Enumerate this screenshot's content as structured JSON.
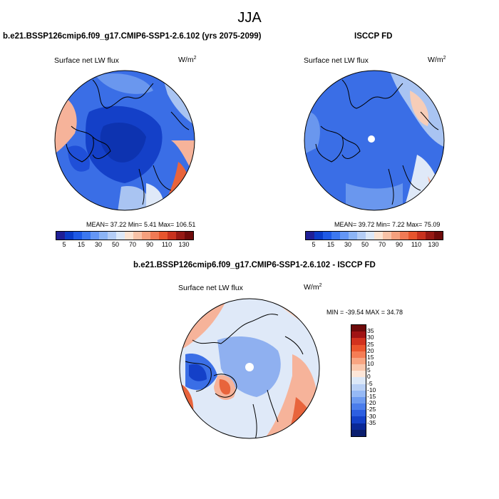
{
  "season": "JJA",
  "panels": [
    {
      "title": "b.e21.BSSP126cmip6.f09_g17.CMIP6-SSP1-2.6.102 (yrs 2075-2099)",
      "variable": "Surface net LW flux",
      "units_base": "W/m",
      "units_exp": "2",
      "stats": "MEAN=  37.22  Min=   5.41  Max= 106.51"
    },
    {
      "title": "ISCCP FD",
      "variable": "Surface net LW flux",
      "units_base": "W/m",
      "units_exp": "2",
      "stats": "MEAN=  39.72  Min=   7.22  Max=  75.09"
    },
    {
      "title": "b.e21.BSSP126cmip6.f09_g17.CMIP6-SSP1-2.6.102 - ISCCP FD",
      "variable": "Surface net LW flux",
      "units_base": "W/m",
      "units_exp": "2",
      "stats": "MIN = -39.54 MAX =  34.78"
    }
  ],
  "colorbars": {
    "absolute": {
      "colors": [
        "#1f1f96",
        "#0a3cc8",
        "#1e5ae6",
        "#3c78f0",
        "#6496f5",
        "#8cb4f5",
        "#b4cdf5",
        "#dce8f8",
        "#fbe3d2",
        "#f8c2a6",
        "#f5a07d",
        "#f07a55",
        "#e6552d",
        "#c8321e",
        "#961914",
        "#6e0a0a"
      ],
      "labels": [
        "5",
        "15",
        "30",
        "50",
        "70",
        "90",
        "110",
        "130"
      ]
    },
    "difference": {
      "colors": [
        "#6e0a0a",
        "#a01414",
        "#d2321e",
        "#eb552d",
        "#f57d55",
        "#f8a582",
        "#fac8ad",
        "#fde6d8",
        "#dce8f8",
        "#b9d0f5",
        "#96b9f5",
        "#6e9bf0",
        "#4b7deb",
        "#2d5fe1",
        "#1441c8",
        "#0a2896",
        "#0a1e6e"
      ],
      "labels": [
        "35",
        "30",
        "25",
        "20",
        "15",
        "10",
        "5",
        "0",
        "-5",
        "-10",
        "-15",
        "-20",
        "-25",
        "-30",
        "-35"
      ]
    }
  },
  "map_colors": {
    "deep_blue": "#1440c8",
    "mid_blue": "#3a6ee6",
    "light_blue": "#a9c4f2",
    "pale": "#dfe9f8",
    "salmon": "#f6b39a",
    "orange": "#e8643c",
    "coast": "#000000"
  }
}
